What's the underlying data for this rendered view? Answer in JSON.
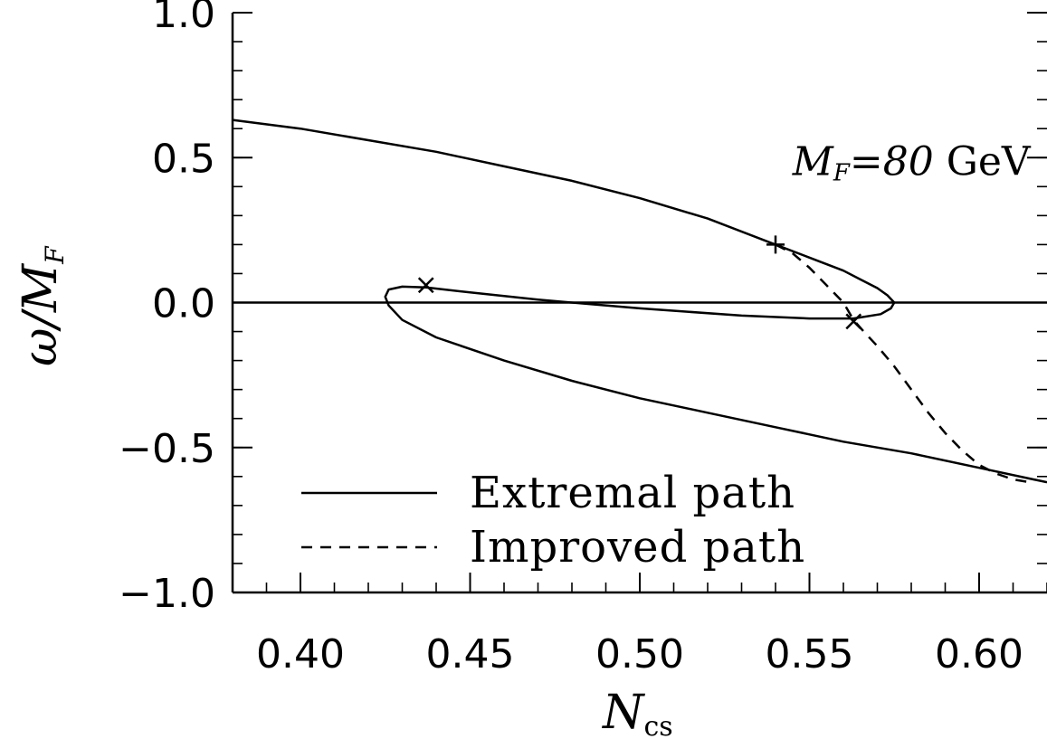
{
  "chart_data": {
    "type": "line",
    "xlabel": "N",
    "xlabel_sub": "cs",
    "ylabel": "ω/M",
    "ylabel_sub": "F",
    "xlim": [
      0.38,
      0.62
    ],
    "ylim": [
      -1.0,
      1.0
    ],
    "x_ticks": [
      0.4,
      0.45,
      0.5,
      0.55,
      0.6
    ],
    "x_tick_labels": [
      "0.40",
      "0.45",
      "0.50",
      "0.55",
      "0.60"
    ],
    "y_ticks": [
      -1.0,
      -0.5,
      0.0,
      0.5,
      1.0
    ],
    "y_tick_labels": [
      "−1.0",
      "−0.5",
      "0.0",
      "0.5",
      "1.0"
    ],
    "grid": false,
    "legend_position": "bottom-left",
    "annotation": {
      "text_var": "M",
      "text_sub": "F",
      "text_eq": "=80",
      "text_unit": " GeV",
      "x": 0.545,
      "y": 0.44
    },
    "zero_line": 0.0,
    "series": [
      {
        "name": "Extremal path",
        "style": "solid",
        "x": [
          0.38,
          0.4,
          0.42,
          0.44,
          0.46,
          0.48,
          0.5,
          0.52,
          0.54,
          0.55,
          0.56,
          0.565,
          0.57,
          0.573,
          0.575,
          0.574,
          0.571,
          0.563,
          0.55,
          0.53,
          0.5,
          0.47,
          0.45,
          0.437,
          0.43,
          0.426,
          0.425,
          0.426,
          0.43,
          0.44,
          0.46,
          0.48,
          0.5,
          0.52,
          0.54,
          0.56,
          0.58,
          0.6,
          0.62
        ],
        "y": [
          0.63,
          0.6,
          0.56,
          0.52,
          0.47,
          0.42,
          0.36,
          0.29,
          0.2,
          0.155,
          0.11,
          0.08,
          0.05,
          0.025,
          0.0,
          -0.02,
          -0.04,
          -0.055,
          -0.055,
          -0.045,
          -0.02,
          0.01,
          0.035,
          0.052,
          0.055,
          0.045,
          0.02,
          -0.01,
          -0.06,
          -0.12,
          -0.2,
          -0.27,
          -0.33,
          -0.38,
          -0.43,
          -0.48,
          -0.52,
          -0.57,
          -0.62
        ]
      },
      {
        "name": "Improved path",
        "style": "dashed",
        "x": [
          0.54,
          0.545,
          0.55,
          0.555,
          0.56,
          0.563,
          0.566,
          0.57,
          0.575,
          0.58,
          0.585,
          0.59,
          0.595,
          0.6,
          0.605,
          0.61,
          0.615
        ],
        "y": [
          0.2,
          0.17,
          0.12,
          0.06,
          0.0,
          -0.06,
          -0.1,
          -0.15,
          -0.22,
          -0.3,
          -0.38,
          -0.45,
          -0.51,
          -0.56,
          -0.59,
          -0.61,
          -0.62
        ]
      }
    ],
    "markers": [
      {
        "symbol": "x",
        "x": 0.437,
        "y": 0.06
      },
      {
        "symbol": "x",
        "x": 0.563,
        "y": -0.065
      },
      {
        "symbol": "+",
        "x": 0.54,
        "y": 0.2
      }
    ]
  }
}
